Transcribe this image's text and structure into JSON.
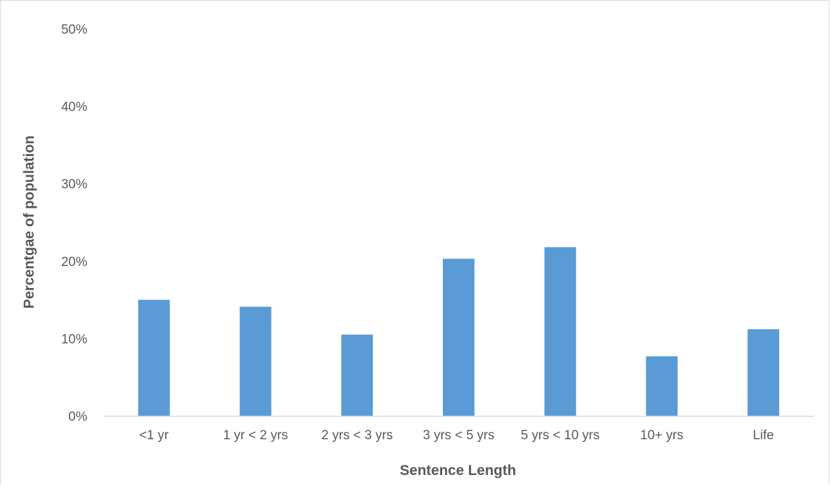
{
  "colors": {
    "bar": "#5b9bd5",
    "axis": "#d9d9d9",
    "text": "#595959"
  },
  "chart_data": {
    "type": "bar",
    "title": "",
    "xlabel": "Sentence Length",
    "ylabel": "Percentgae of population",
    "categories": [
      "<1 yr",
      "1 yr < 2 yrs",
      "2 yrs < 3 yrs",
      "3 yrs < 5 yrs",
      "5 yrs < 10 yrs",
      "10+ yrs",
      "Life"
    ],
    "values": [
      15.0,
      14.1,
      10.5,
      20.3,
      21.8,
      7.7,
      11.2
    ],
    "ylim": [
      0,
      50
    ],
    "y_ticks": [
      0,
      10,
      20,
      30,
      40,
      50
    ],
    "y_tick_labels": [
      "0%",
      "10%",
      "20%",
      "30%",
      "40%",
      "50%"
    ],
    "y_unit": "percent",
    "grid": false,
    "legend": "none"
  }
}
